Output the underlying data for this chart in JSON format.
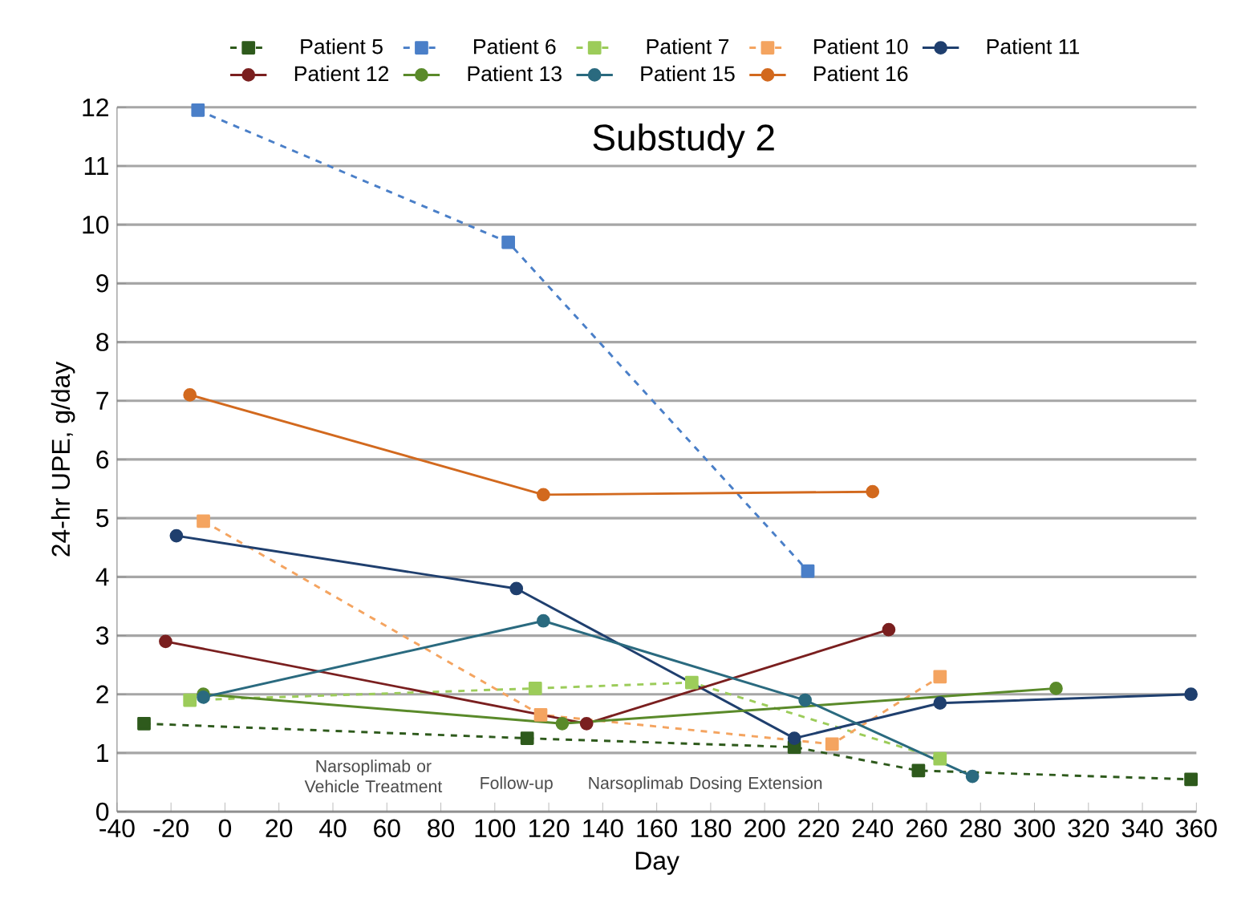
{
  "chart_data": {
    "type": "line",
    "title": "Substudy 2",
    "xlabel": "Day",
    "ylabel": "24-hr UPE, g/day",
    "xlim": [
      -40,
      360
    ],
    "xticks": [
      -40,
      -20,
      0,
      20,
      40,
      60,
      80,
      100,
      120,
      140,
      160,
      180,
      200,
      220,
      240,
      260,
      280,
      300,
      320,
      340,
      360
    ],
    "ylim": [
      0,
      12
    ],
    "yticks": [
      0,
      1,
      2,
      3,
      4,
      5,
      6,
      7,
      8,
      9,
      10,
      11,
      12
    ],
    "grid": "y",
    "legend": "top",
    "annotations": [
      "Narsoplimab or Vehicle Treatment",
      "Follow-up",
      "Narsoplimab Dosing Extension"
    ],
    "series": [
      {
        "name": "Patient 5",
        "color": "#2e5a1c",
        "marker": "square",
        "line_style": "dashed",
        "x": [
          -30,
          112,
          211,
          257,
          358
        ],
        "values": [
          1.5,
          1.25,
          1.1,
          0.7,
          0.55
        ]
      },
      {
        "name": "Patient 6",
        "color": "#4a7fc8",
        "marker": "square",
        "line_style": "dashed",
        "x": [
          -10,
          105,
          216
        ],
        "values": [
          11.95,
          9.7,
          4.1
        ]
      },
      {
        "name": "Patient 7",
        "color": "#9ccc5a",
        "marker": "square",
        "line_style": "dashed",
        "x": [
          -13,
          115,
          173,
          265
        ],
        "values": [
          1.9,
          2.1,
          2.2,
          0.9
        ]
      },
      {
        "name": "Patient 10",
        "color": "#f4a460",
        "marker": "square",
        "line_style": "dashed",
        "x": [
          -8,
          117,
          225,
          265
        ],
        "values": [
          4.95,
          1.65,
          1.15,
          2.3
        ]
      },
      {
        "name": "Patient 11",
        "color": "#1f3f6e",
        "marker": "circle",
        "line_style": "solid",
        "x": [
          -18,
          108,
          211,
          265,
          358
        ],
        "values": [
          4.7,
          3.8,
          1.25,
          1.85,
          2.0
        ]
      },
      {
        "name": "Patient 12",
        "color": "#7a1f1f",
        "marker": "circle",
        "line_style": "solid",
        "x": [
          -22,
          134,
          246
        ],
        "values": [
          2.9,
          1.5,
          3.1
        ]
      },
      {
        "name": "Patient 13",
        "color": "#5a8a2a",
        "marker": "circle",
        "line_style": "solid",
        "x": [
          -8,
          125,
          308
        ],
        "values": [
          2.0,
          1.5,
          2.1
        ]
      },
      {
        "name": "Patient 15",
        "color": "#2a6a7f",
        "marker": "circle",
        "line_style": "solid",
        "x": [
          -8,
          118,
          215,
          277
        ],
        "values": [
          1.95,
          3.25,
          1.9,
          0.6
        ]
      },
      {
        "name": "Patient 16",
        "color": "#d2691e",
        "marker": "circle",
        "line_style": "solid",
        "x": [
          -13,
          118,
          240
        ],
        "values": [
          7.1,
          5.4,
          5.45
        ]
      }
    ]
  }
}
